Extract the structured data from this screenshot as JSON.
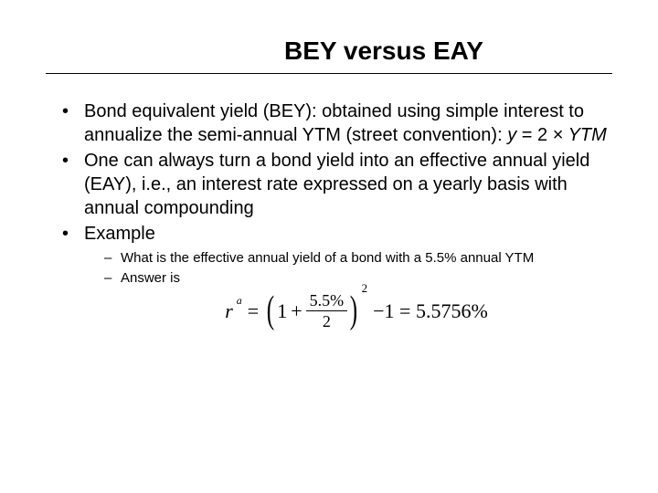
{
  "title": "BEY versus EAY",
  "bullets": {
    "b1_pre": "Bond equivalent yield (BEY): obtained using simple interest to annualize the semi-annual YTM (street convention):  ",
    "b1_formula_y": "y",
    "b1_formula_eq": " = 2 ",
    "b1_formula_mult": "×",
    "b1_formula_ytm": " YTM",
    "b2": "One can always turn a bond yield into an effective annual yield (EAY), i.e., an interest rate expressed on a yearly basis with annual compounding",
    "b3": "Example"
  },
  "subs": {
    "s1": "What is the effective annual yield of a bond with a 5.5% annual YTM",
    "s2": "Answer is"
  },
  "equation": {
    "r": "r",
    "r_sup": "a",
    "eq1": "=",
    "lparen": "(",
    "one": "1",
    "plus": "+",
    "num": "5.5%",
    "den": "2",
    "rparen": ")",
    "exp": "2",
    "tail": "−1 = 5.5756%"
  },
  "colors": {
    "background": "#ffffff",
    "text": "#000000",
    "rule": "#000000"
  }
}
